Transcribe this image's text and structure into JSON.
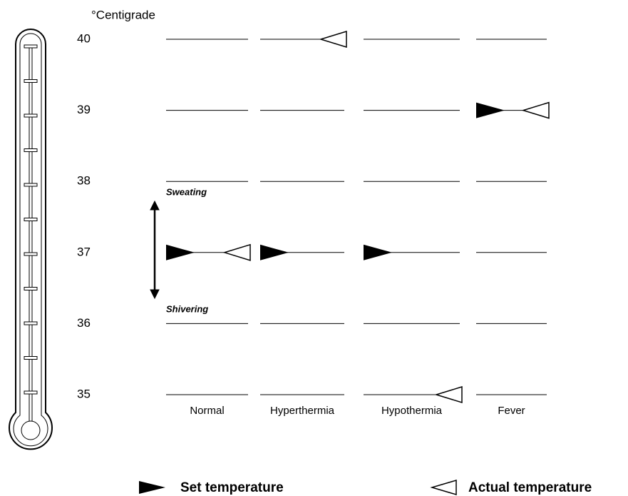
{
  "unit_label": "°Centigrade",
  "scale": [
    40,
    39,
    38,
    37,
    36,
    35
  ],
  "annotations": {
    "upper": "Sweating",
    "lower": "Shivering"
  },
  "conditions": [
    {
      "name": "Normal",
      "set": 37,
      "actual": 37
    },
    {
      "name": "Hyperthermia",
      "set": 37,
      "actual": 40
    },
    {
      "name": "Hypothermia",
      "set": 37,
      "actual": 35
    },
    {
      "name": "Fever",
      "set": 39,
      "actual": 39
    }
  ],
  "legend": {
    "set": "Set temperature",
    "actual": "Actual temperature"
  }
}
